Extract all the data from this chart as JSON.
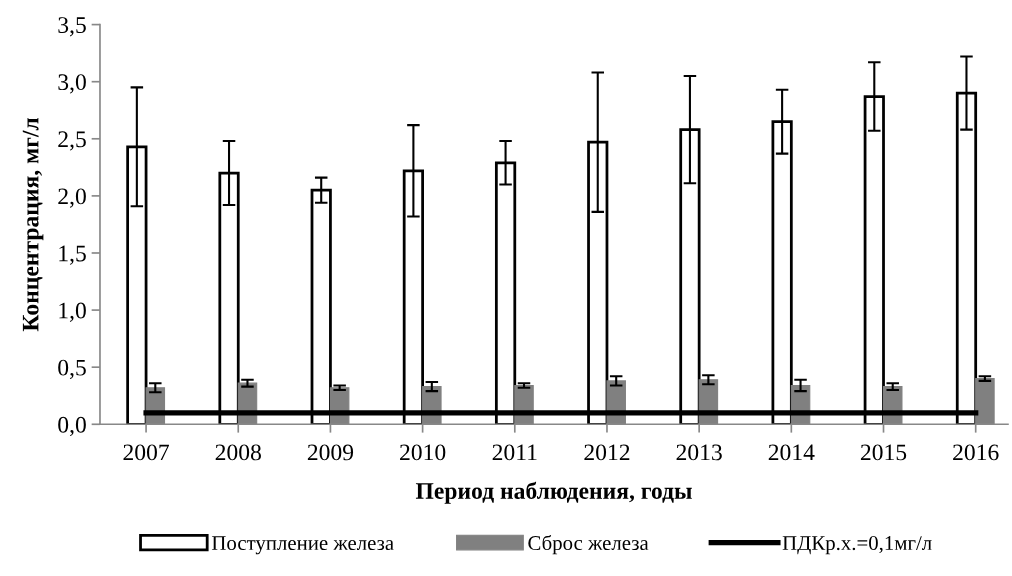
{
  "chart_data": {
    "type": "bar",
    "xlabel": "Период наблюдения, годы",
    "ylabel": "Концентрация, мг/л",
    "categories": [
      "2007",
      "2008",
      "2009",
      "2010",
      "2011",
      "2012",
      "2013",
      "2014",
      "2015",
      "2016"
    ],
    "series": [
      {
        "name": "Поступление железа",
        "color": "#ffffff",
        "values": [
          2.43,
          2.2,
          2.05,
          2.22,
          2.29,
          2.47,
          2.58,
          2.65,
          2.87,
          2.9
        ],
        "errors": [
          0.52,
          0.28,
          0.11,
          0.4,
          0.19,
          0.61,
          0.47,
          0.28,
          0.3,
          0.32
        ]
      },
      {
        "name": "Сброс железа",
        "color": "#808080",
        "values": [
          0.32,
          0.36,
          0.32,
          0.33,
          0.34,
          0.38,
          0.39,
          0.34,
          0.33,
          0.4
        ],
        "errors": [
          0.04,
          0.03,
          0.02,
          0.04,
          0.02,
          0.04,
          0.04,
          0.05,
          0.03,
          0.02
        ]
      },
      {
        "name": "ПДКр.х.=0,1мг/л",
        "type": "line",
        "color": "#000000",
        "values": [
          0.1,
          0.1,
          0.1,
          0.1,
          0.1,
          0.1,
          0.1,
          0.1,
          0.1,
          0.1
        ]
      }
    ],
    "ylim": [
      0,
      3.5
    ],
    "yticks": [
      {
        "value": 0,
        "label": "0,0"
      },
      {
        "value": 0.5,
        "label": "0,5"
      },
      {
        "value": 1,
        "label": "1,0"
      },
      {
        "value": 1.5,
        "label": "1,5"
      },
      {
        "value": 2,
        "label": "2,0"
      },
      {
        "value": 2.5,
        "label": "2,5"
      },
      {
        "value": 3,
        "label": "3,0"
      },
      {
        "value": 3.5,
        "label": "3,5"
      }
    ],
    "grid": false,
    "legend": "bottom",
    "marker": "none",
    "line_style": "solid"
  }
}
